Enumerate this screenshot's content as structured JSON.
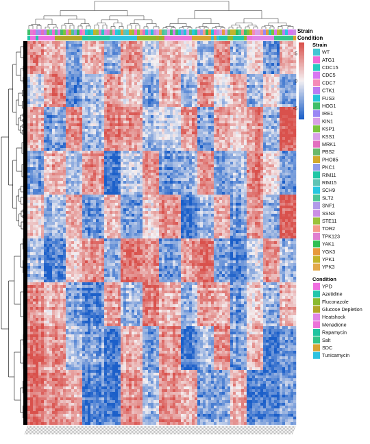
{
  "chart_data": {
    "type": "heatmap",
    "title": "",
    "xlabel": "",
    "ylabel": "",
    "annotation_rows": [
      "Strain",
      "Condition"
    ],
    "color_scale": {
      "ticks": [
        5,
        0,
        -5
      ],
      "range": [
        -7,
        7
      ],
      "colors": {
        "low": "#1b5fc9",
        "mid": "#f4f0f2",
        "high": "#d9514c"
      }
    },
    "legends": [
      {
        "title": "Strain",
        "entries": [
          {
            "label": "WT",
            "color": "#42c7d3"
          },
          {
            "label": "ATG1",
            "color": "#f06ad6"
          },
          {
            "label": "CDC15",
            "color": "#25cbbf"
          },
          {
            "label": "CDC5",
            "color": "#d977f2"
          },
          {
            "label": "CDC7",
            "color": "#f58bb8"
          },
          {
            "label": "CTK1",
            "color": "#b97cf4"
          },
          {
            "label": "FUS3",
            "color": "#22c5d8"
          },
          {
            "label": "HOG1",
            "color": "#3fbf6a"
          },
          {
            "label": "IRE1",
            "color": "#9a86f4"
          },
          {
            "label": "KIN1",
            "color": "#d99fe6"
          },
          {
            "label": "KSP1",
            "color": "#7cc43f"
          },
          {
            "label": "KSS1",
            "color": "#d9a0e8"
          },
          {
            "label": "MRK1",
            "color": "#e26fbf"
          },
          {
            "label": "PBS2",
            "color": "#69b86b"
          },
          {
            "label": "PHO85",
            "color": "#d2a92c"
          },
          {
            "label": "PKC1",
            "color": "#8f9be9"
          },
          {
            "label": "RIM11",
            "color": "#20c6a5"
          },
          {
            "label": "RIM15",
            "color": "#5fc3b4"
          },
          {
            "label": "SCH9",
            "color": "#28c7e0"
          },
          {
            "label": "SLT2",
            "color": "#4dc596"
          },
          {
            "label": "SNF1",
            "color": "#b19be9"
          },
          {
            "label": "SSN3",
            "color": "#cb8fe4"
          },
          {
            "label": "STE11",
            "color": "#9bc23a"
          },
          {
            "label": "TOR2",
            "color": "#f59a8a"
          },
          {
            "label": "TPK123",
            "color": "#e07fd0"
          },
          {
            "label": "YAK1",
            "color": "#2fbf52"
          },
          {
            "label": "YGK3",
            "color": "#e79a3d"
          },
          {
            "label": "YPK1",
            "color": "#c2b42b"
          },
          {
            "label": "YPK3",
            "color": "#e2a94a"
          }
        ]
      },
      {
        "title": "Condition",
        "entries": [
          {
            "label": "YPD",
            "color": "#ef6fe0"
          },
          {
            "label": "Azetidine",
            "color": "#22c6aa"
          },
          {
            "label": "Fluconazole",
            "color": "#8aba2e"
          },
          {
            "label": "Glucose Depletion",
            "color": "#b2a627"
          },
          {
            "label": "Heatshock",
            "color": "#e084e6"
          },
          {
            "label": "Menadione",
            "color": "#ec74d9"
          },
          {
            "label": "Rapamycin",
            "color": "#21c4a0"
          },
          {
            "label": "Salt",
            "color": "#33c489"
          },
          {
            "label": "SDC",
            "color": "#d8a334"
          },
          {
            "label": "Tunicamycin",
            "color": "#2ec2e0"
          }
        ]
      }
    ]
  }
}
